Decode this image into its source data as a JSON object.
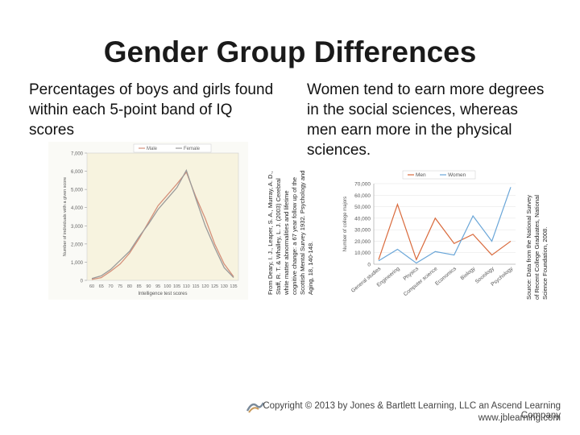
{
  "slide": {
    "title": "Gender Group Differences",
    "left_text": "Percentages of boys and girls found within each 5-point band of IQ scores",
    "right_text": "Women tend to earn more degrees in the social sciences, whereas men earn more in the physical sciences.",
    "credit_left": [
      "From Deary, I. J., Leaper, S. A., Murray, A. D.,",
      "Staff, R. T. & Whalley, L. J. (2003) Cerebral",
      "white matter abnormalities and lifetime",
      "cognitive change: a 67 year follow up of the",
      "Scottish Mental Survey 1932. Psychology and",
      "Aging, 18, 140-148."
    ],
    "credit_right": [
      "Source: Data from the National Survey",
      "of Recent College Graduates, National",
      "Science Foundation, 2008."
    ],
    "copyright": "Copyright © 2013 by Jones & Bartlett Learning, LLC an Ascend Learning Company",
    "url": "www.jblearning.com"
  },
  "colors": {
    "male": "#d4907a",
    "female": "#9a9a9a",
    "men": "#d96a3c",
    "women": "#6aa6d8"
  },
  "chart_data": [
    {
      "type": "line",
      "xlabel": "Intelligence test scores",
      "ylabel": "Number of individuals with a given score",
      "x": [
        "60",
        "65",
        "70",
        "75",
        "80",
        "85",
        "90",
        "95",
        "100",
        "105",
        "110",
        "115",
        "120",
        "125",
        "130",
        "135"
      ],
      "ylim": [
        0,
        7000
      ],
      "yticks": [
        "0",
        "1,000",
        "2,000",
        "3,000",
        "4,000",
        "5,000",
        "6,000",
        "7,000"
      ],
      "series": [
        {
          "name": "Male",
          "values": [
            50,
            150,
            500,
            900,
            1500,
            2300,
            3200,
            4100,
            4700,
            5300,
            5950,
            4600,
            3400,
            2000,
            900,
            200
          ]
        },
        {
          "name": "Female",
          "values": [
            100,
            250,
            600,
            1100,
            1600,
            2400,
            3100,
            3900,
            4500,
            5100,
            6050,
            4500,
            3000,
            1800,
            700,
            150
          ]
        }
      ],
      "legend_position": "top-center"
    },
    {
      "type": "line",
      "xlabel": "",
      "ylabel": "Number of college majors",
      "categories": [
        "General studies",
        "Engineering",
        "Physics",
        "Computer science",
        "Economics",
        "Biology",
        "Sociology",
        "Psychology"
      ],
      "ylim": [
        0,
        70000
      ],
      "yticks": [
        "0",
        "10,000",
        "20,000",
        "30,000",
        "40,000",
        "50,000",
        "60,000",
        "70,000"
      ],
      "series": [
        {
          "name": "Men",
          "values": [
            4000,
            52000,
            4000,
            40000,
            18000,
            26000,
            8000,
            20000
          ]
        },
        {
          "name": "Women",
          "values": [
            3000,
            13000,
            1000,
            11000,
            8000,
            42000,
            20000,
            67000
          ]
        }
      ],
      "legend_position": "top-center"
    }
  ]
}
